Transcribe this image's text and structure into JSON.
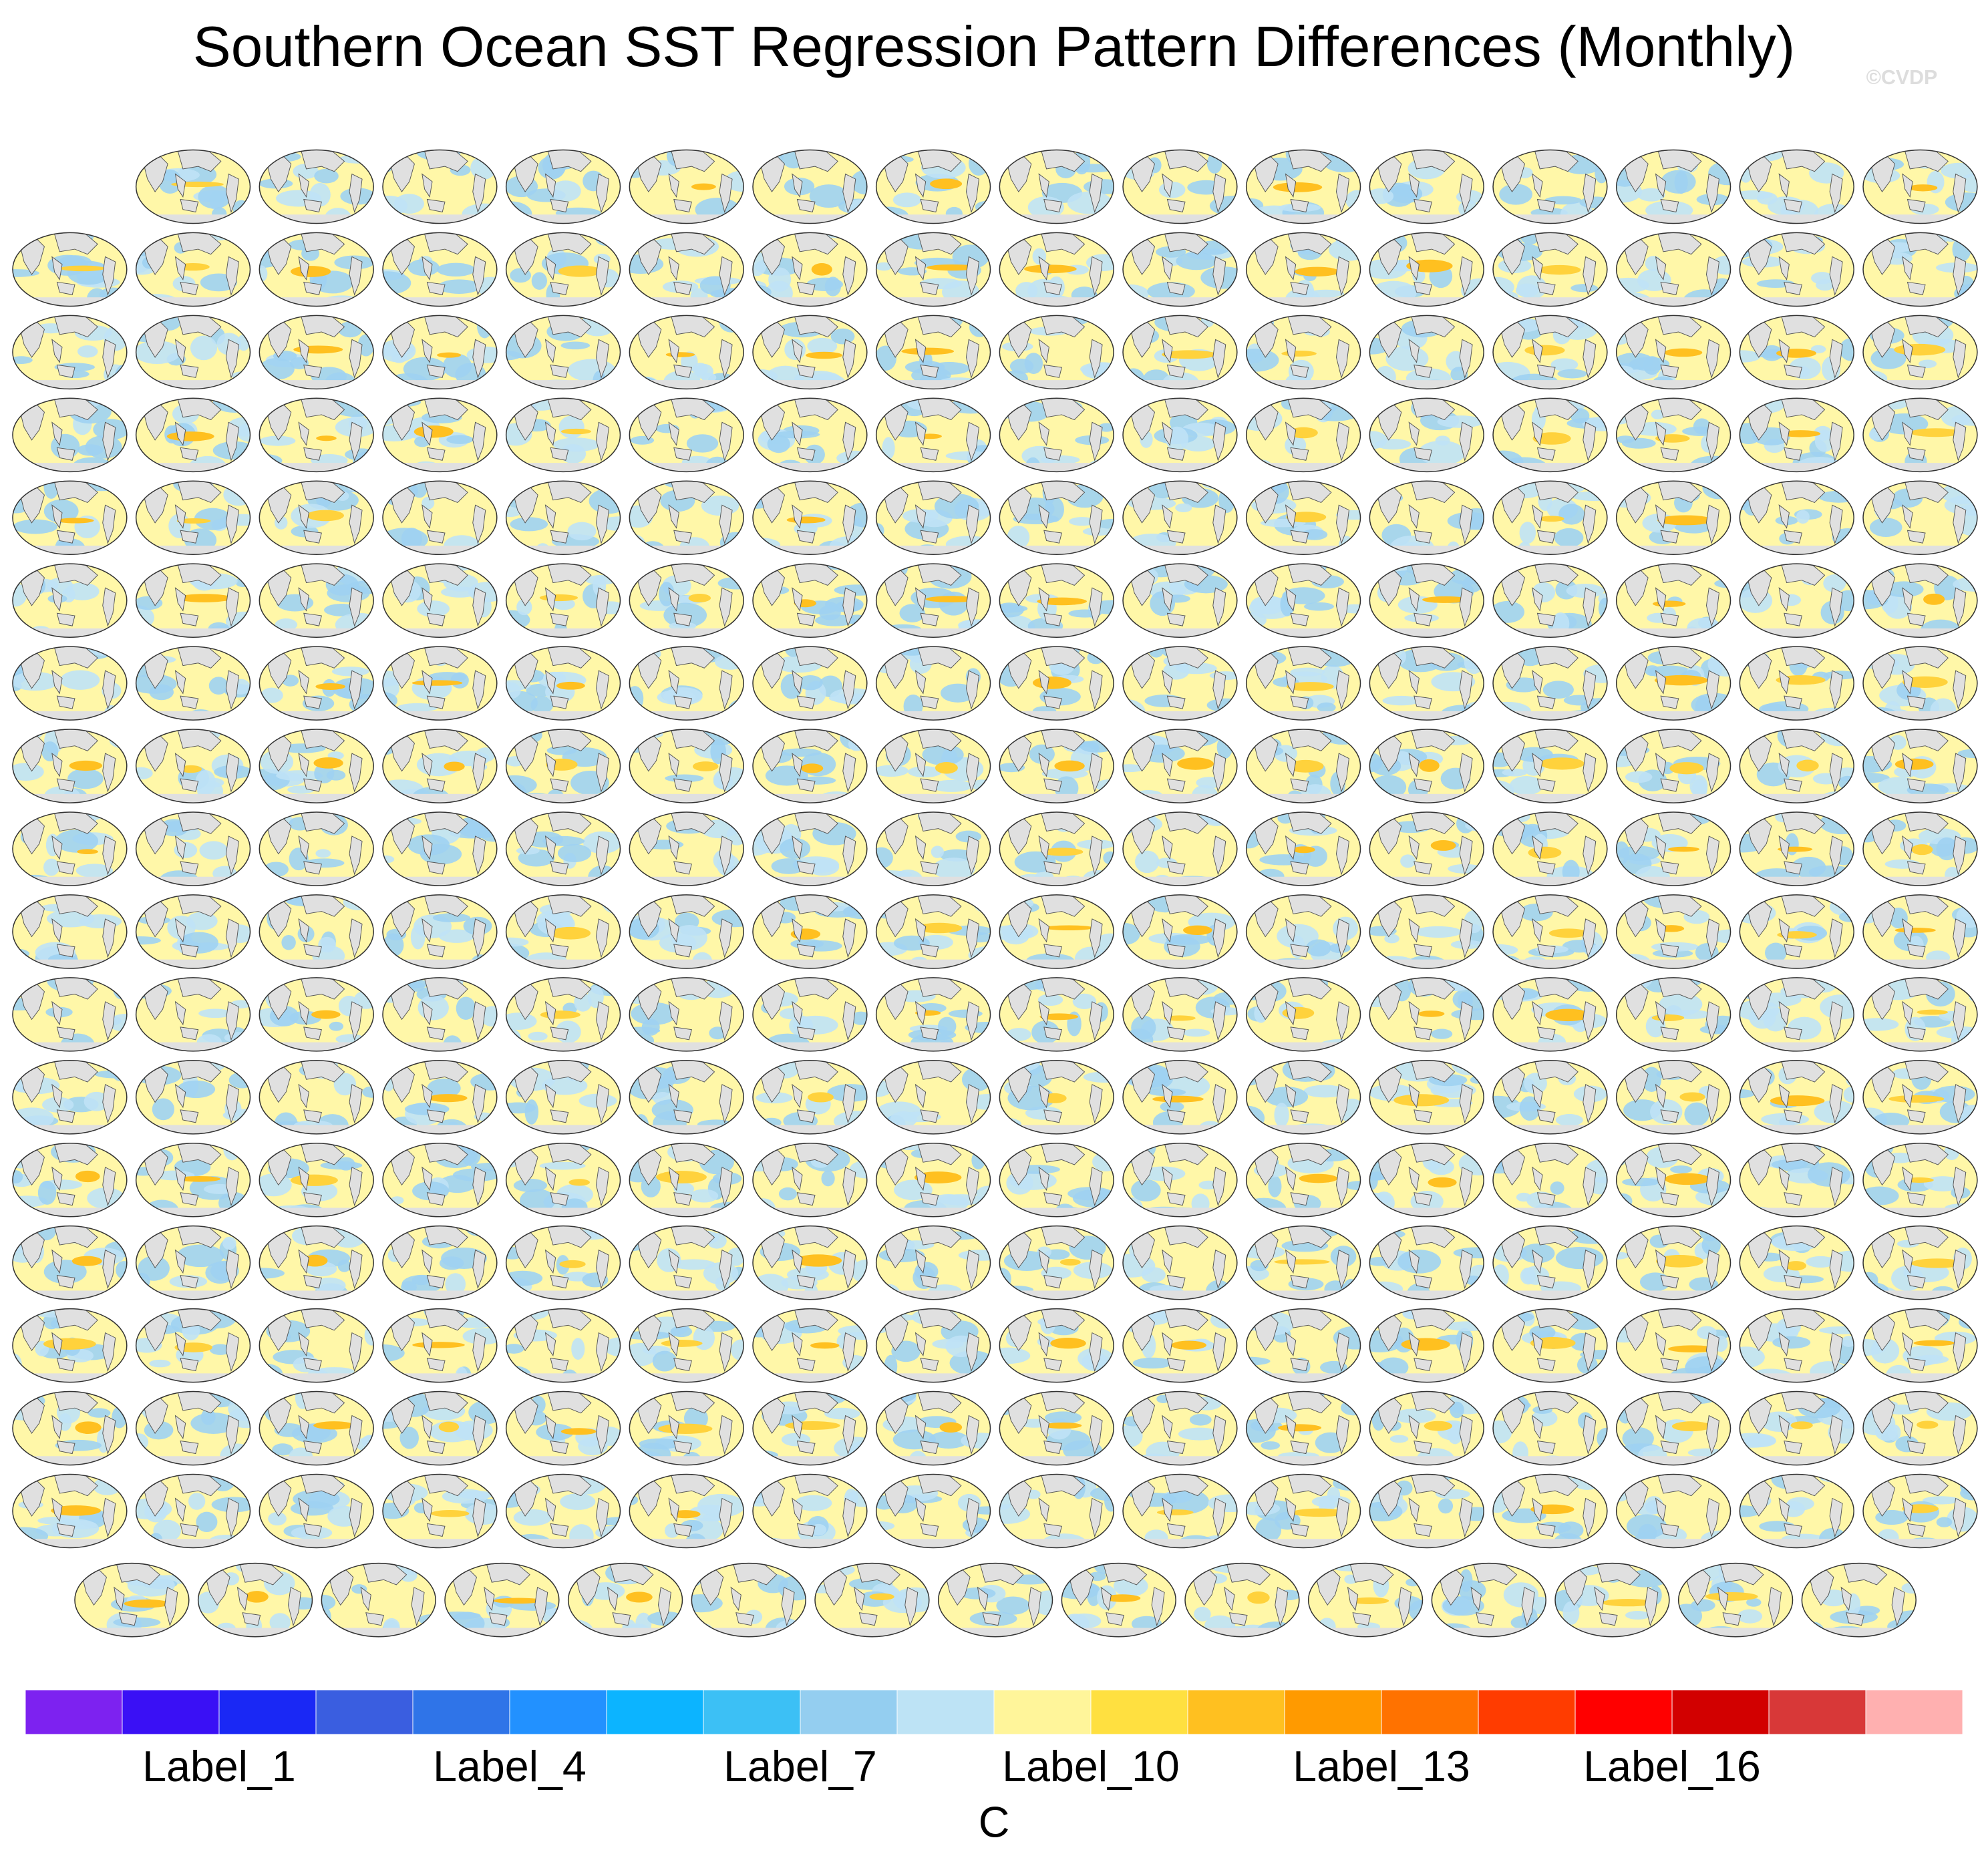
{
  "title": "Southern Ocean SST Regression Pattern Differences (Monthly)",
  "watermark": "©CVDP",
  "colorbar": {
    "colors": [
      "#7d22f0",
      "#3a10f5",
      "#1a28f5",
      "#3a5ee0",
      "#2f74e8",
      "#2291ff",
      "#0cb4ff",
      "#3cc0f5",
      "#94cef0",
      "#bde3f5",
      "#fff59a",
      "#ffe040",
      "#ffc020",
      "#ff9a00",
      "#ff7200",
      "#ff3c00",
      "#ff0000",
      "#d20000",
      "#d83838",
      "#ffb0b0"
    ],
    "labels": [
      "Label_1",
      "Label_4",
      "Label_7",
      "Label_10",
      "Label_13",
      "Label_16"
    ],
    "units": "C"
  }
}
